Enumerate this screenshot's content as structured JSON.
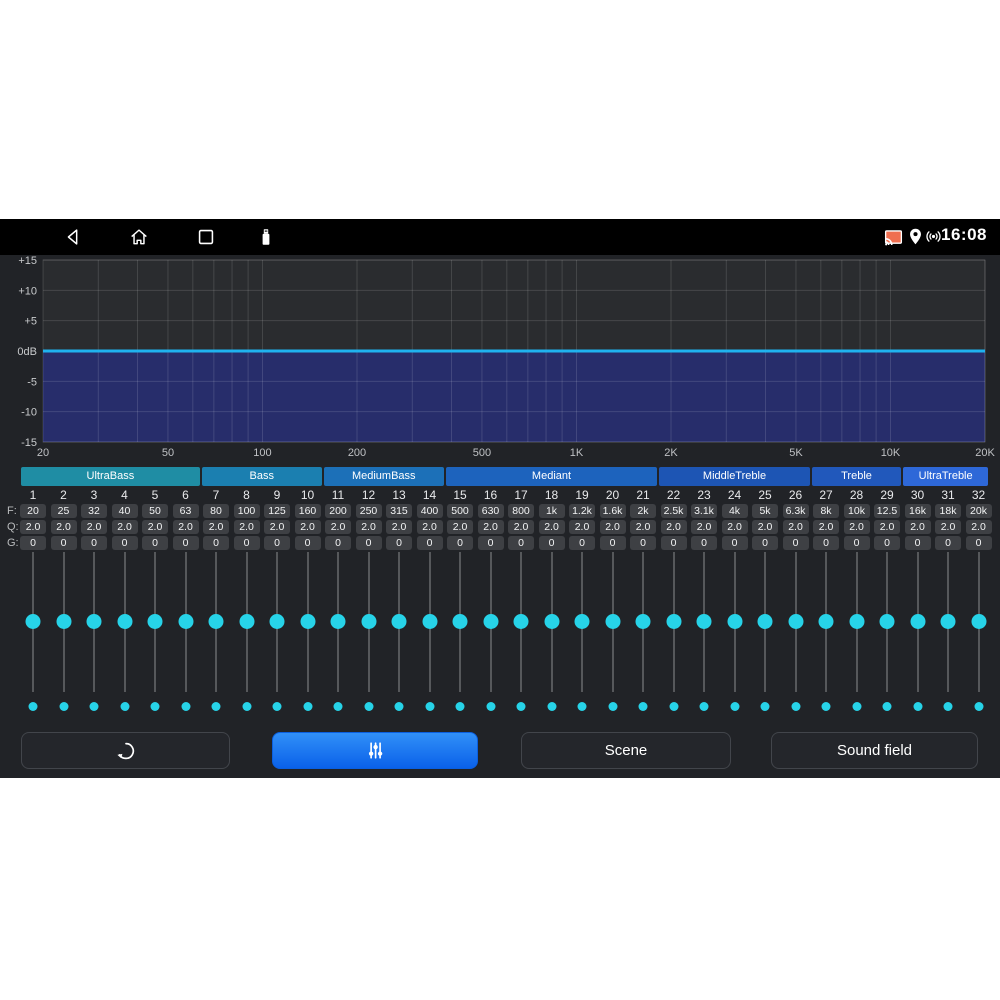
{
  "status_bar": {
    "time": "16:08",
    "nav_icons": [
      "back",
      "home",
      "recents",
      "usb"
    ],
    "status_icons": [
      "screen-cast",
      "location",
      "hotspot"
    ],
    "cast_icon_color": "#ef6f50"
  },
  "chart_data": {
    "type": "area",
    "title": "",
    "xlabel": "",
    "ylabel": "",
    "x_scale": "log",
    "xlim": [
      20,
      20000
    ],
    "ylim": [
      -15,
      15
    ],
    "x_ticks": [
      {
        "value": 20,
        "label": "20"
      },
      {
        "value": 50,
        "label": "50"
      },
      {
        "value": 100,
        "label": "100"
      },
      {
        "value": 200,
        "label": "200"
      },
      {
        "value": 500,
        "label": "500"
      },
      {
        "value": 1000,
        "label": "1K"
      },
      {
        "value": 2000,
        "label": "2K"
      },
      {
        "value": 5000,
        "label": "5K"
      },
      {
        "value": 10000,
        "label": "10K"
      },
      {
        "value": 20000,
        "label": "20K"
      }
    ],
    "y_ticks": [
      {
        "value": 15,
        "label": "+15"
      },
      {
        "value": 10,
        "label": "+10"
      },
      {
        "value": 5,
        "label": "+5"
      },
      {
        "value": 0,
        "label": "0dB"
      },
      {
        "value": -5,
        "label": "-5"
      },
      {
        "value": -10,
        "label": "-10"
      },
      {
        "value": -15,
        "label": "-15"
      }
    ],
    "grid": true,
    "series": [
      {
        "name": "eq-response-db",
        "x": [
          20,
          20000
        ],
        "y": [
          0,
          0
        ]
      }
    ],
    "line_color": "#1fb2ef",
    "fill_below_line_color": "#272d6b",
    "plot_bg_color": "#2a2c2f",
    "grid_color": "rgba(255,255,255,0.13)"
  },
  "bands": [
    {
      "label": "UltraBass",
      "color": "#1f8da4",
      "cols": [
        1,
        6
      ]
    },
    {
      "label": "Bass",
      "color": "#1b7fb0",
      "cols": [
        7,
        10
      ]
    },
    {
      "label": "MediumBass",
      "color": "#1c70b8",
      "cols": [
        11,
        14
      ]
    },
    {
      "label": "Mediant",
      "color": "#1d63bd",
      "cols": [
        15,
        21
      ]
    },
    {
      "label": "MiddleTreble",
      "color": "#1d55b4",
      "cols": [
        22,
        26
      ]
    },
    {
      "label": "Treble",
      "color": "#2158bb",
      "cols": [
        27,
        29
      ]
    },
    {
      "label": "UltraTreble",
      "color": "#2e68d8",
      "cols": [
        30,
        32
      ]
    }
  ],
  "equalizer": {
    "row_labels": {
      "f": "F:",
      "q": "Q:",
      "g": "G:"
    },
    "knob_color": "#27d3e8",
    "channels": [
      {
        "n": "1",
        "f": "20",
        "q": "2.0",
        "g": "0"
      },
      {
        "n": "2",
        "f": "25",
        "q": "2.0",
        "g": "0"
      },
      {
        "n": "3",
        "f": "32",
        "q": "2.0",
        "g": "0"
      },
      {
        "n": "4",
        "f": "40",
        "q": "2.0",
        "g": "0"
      },
      {
        "n": "5",
        "f": "50",
        "q": "2.0",
        "g": "0"
      },
      {
        "n": "6",
        "f": "63",
        "q": "2.0",
        "g": "0"
      },
      {
        "n": "7",
        "f": "80",
        "q": "2.0",
        "g": "0"
      },
      {
        "n": "8",
        "f": "100",
        "q": "2.0",
        "g": "0"
      },
      {
        "n": "9",
        "f": "125",
        "q": "2.0",
        "g": "0"
      },
      {
        "n": "10",
        "f": "160",
        "q": "2.0",
        "g": "0"
      },
      {
        "n": "11",
        "f": "200",
        "q": "2.0",
        "g": "0"
      },
      {
        "n": "12",
        "f": "250",
        "q": "2.0",
        "g": "0"
      },
      {
        "n": "13",
        "f": "315",
        "q": "2.0",
        "g": "0"
      },
      {
        "n": "14",
        "f": "400",
        "q": "2.0",
        "g": "0"
      },
      {
        "n": "15",
        "f": "500",
        "q": "2.0",
        "g": "0"
      },
      {
        "n": "16",
        "f": "630",
        "q": "2.0",
        "g": "0"
      },
      {
        "n": "17",
        "f": "800",
        "q": "2.0",
        "g": "0"
      },
      {
        "n": "18",
        "f": "1k",
        "q": "2.0",
        "g": "0"
      },
      {
        "n": "19",
        "f": "1.2k",
        "q": "2.0",
        "g": "0"
      },
      {
        "n": "20",
        "f": "1.6k",
        "q": "2.0",
        "g": "0"
      },
      {
        "n": "21",
        "f": "2k",
        "q": "2.0",
        "g": "0"
      },
      {
        "n": "22",
        "f": "2.5k",
        "q": "2.0",
        "g": "0"
      },
      {
        "n": "23",
        "f": "3.1k",
        "q": "2.0",
        "g": "0"
      },
      {
        "n": "24",
        "f": "4k",
        "q": "2.0",
        "g": "0"
      },
      {
        "n": "25",
        "f": "5k",
        "q": "2.0",
        "g": "0"
      },
      {
        "n": "26",
        "f": "6.3k",
        "q": "2.0",
        "g": "0"
      },
      {
        "n": "27",
        "f": "8k",
        "q": "2.0",
        "g": "0"
      },
      {
        "n": "28",
        "f": "10k",
        "q": "2.0",
        "g": "0"
      },
      {
        "n": "29",
        "f": "12.5",
        "q": "2.0",
        "g": "0"
      },
      {
        "n": "30",
        "f": "16k",
        "q": "2.0",
        "g": "0"
      },
      {
        "n": "31",
        "f": "18k",
        "q": "2.0",
        "g": "0"
      },
      {
        "n": "32",
        "f": "20k",
        "q": "2.0",
        "g": "0"
      }
    ]
  },
  "buttons": {
    "reset_icon": "reset-icon",
    "equalizer_icon": "equalizer-sliders-icon",
    "scene_label": "Scene",
    "sound_field_label": "Sound field",
    "active_button_color": "#156fee"
  }
}
